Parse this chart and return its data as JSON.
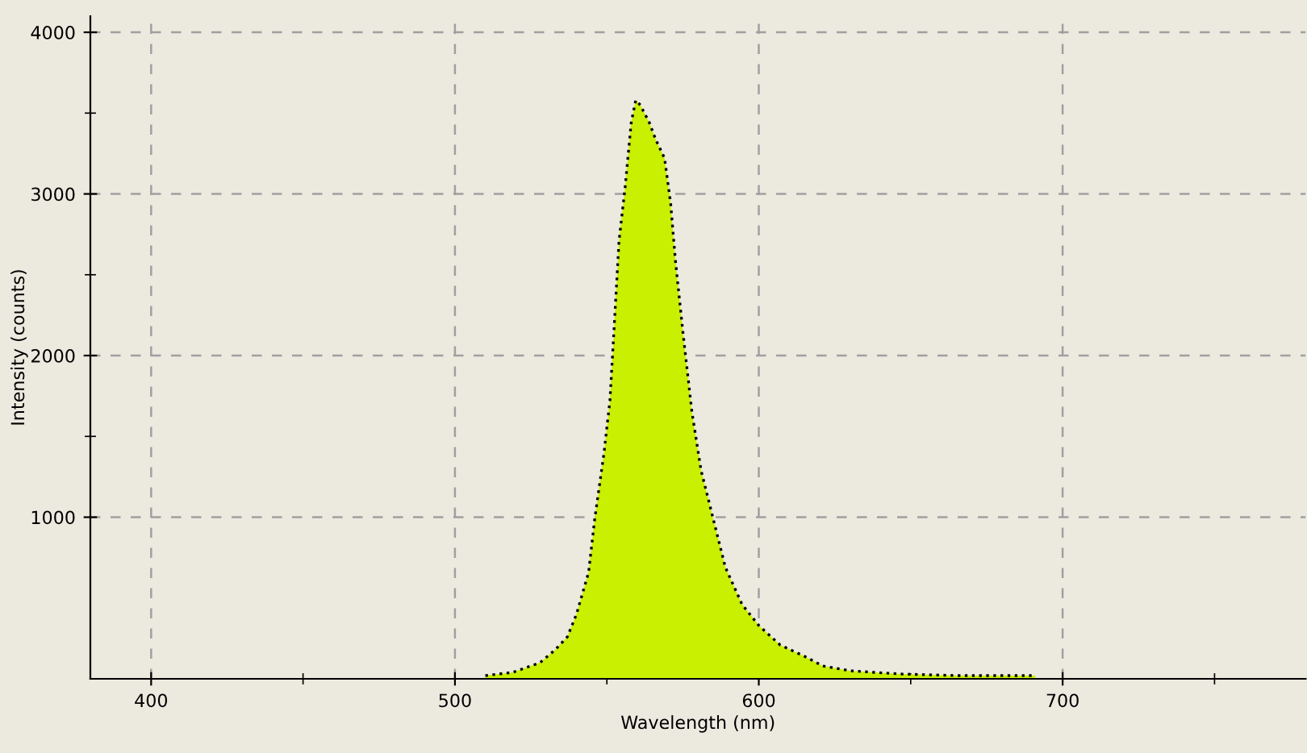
{
  "chart_data": {
    "type": "area",
    "xlabel": "Wavelength (nm)",
    "ylabel": "Intensity (counts)",
    "x": [
      510,
      519,
      528,
      533,
      537,
      540,
      544,
      546,
      549,
      551,
      552.5,
      554,
      556,
      558,
      559.5,
      561,
      564,
      566,
      569,
      571,
      572.6,
      575,
      578,
      581,
      585,
      589,
      594.5,
      600,
      607,
      615,
      621,
      630,
      638,
      647,
      665,
      691
    ],
    "series": [
      {
        "color": "#c8f000",
        "values": [
          20,
          40,
          100,
          180,
          260,
          400,
          660,
          990,
          1390,
          1720,
          2210,
          2710,
          3040,
          3440,
          3580,
          3550,
          3440,
          3340,
          3220,
          2940,
          2580,
          2150,
          1650,
          1290,
          990,
          690,
          460,
          330,
          210,
          140,
          80,
          50,
          40,
          30,
          20,
          20
        ]
      }
    ],
    "xlim": [
      380,
      780
    ],
    "ylim": [
      0,
      4100
    ],
    "xticks": [
      400,
      {
        "value": 450,
        "label": null
      },
      500,
      {
        "value": 550,
        "label": null
      },
      600,
      {
        "value": 650,
        "label": null
      },
      700,
      {
        "value": 750,
        "label": null
      }
    ],
    "yticks": [
      1000,
      {
        "value": 1500,
        "label": null
      },
      2000,
      {
        "value": 2500,
        "label": null
      },
      3000,
      {
        "value": 3500,
        "label": null
      },
      4000
    ],
    "grid": true,
    "marker": "none",
    "line_style": "dotted"
  }
}
